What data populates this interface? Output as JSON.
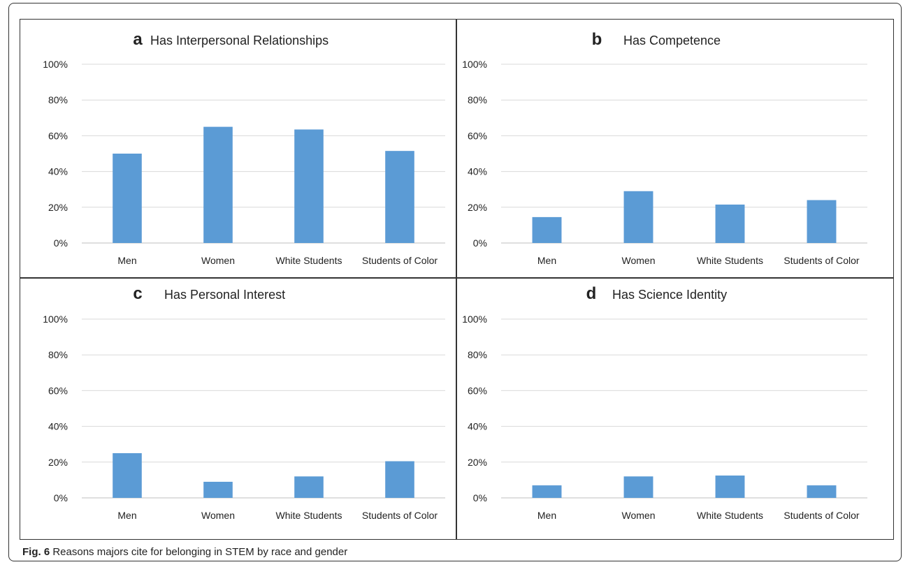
{
  "colors": {
    "bar": "#5b9bd5",
    "grid": "#d9d9d9",
    "axis": "#bfbfbf",
    "text": "#222222"
  },
  "chart_data": [
    {
      "type": "bar",
      "panel_letter": "a",
      "title": "Has Interpersonal Relationships",
      "categories": [
        "Men",
        "Women",
        "White Students",
        "Students of Color"
      ],
      "values": [
        50,
        65,
        63.5,
        51.5
      ],
      "unit": "%",
      "ylim": [
        0,
        100
      ],
      "yticks": [
        "0%",
        "20%",
        "40%",
        "60%",
        "80%",
        "100%"
      ],
      "grid": true,
      "legend": "none"
    },
    {
      "type": "bar",
      "panel_letter": "b",
      "title": "Has Competence",
      "categories": [
        "Men",
        "Women",
        "White Students",
        "Students of Color"
      ],
      "values": [
        14.5,
        29,
        21.5,
        24
      ],
      "unit": "%",
      "ylim": [
        0,
        100
      ],
      "yticks": [
        "0%",
        "20%",
        "40%",
        "60%",
        "80%",
        "100%"
      ],
      "grid": true,
      "legend": "none"
    },
    {
      "type": "bar",
      "panel_letter": "c",
      "title": "Has Personal Interest",
      "categories": [
        "Men",
        "Women",
        "White Students",
        "Students of Color"
      ],
      "values": [
        25,
        9,
        12,
        20.5
      ],
      "unit": "%",
      "ylim": [
        0,
        100
      ],
      "yticks": [
        "0%",
        "20%",
        "40%",
        "60%",
        "80%",
        "100%"
      ],
      "grid": true,
      "legend": "none"
    },
    {
      "type": "bar",
      "panel_letter": "d",
      "title": "Has Science Identity",
      "categories": [
        "Men",
        "Women",
        "White Students",
        "Students of Color"
      ],
      "values": [
        7,
        12,
        12.5,
        7
      ],
      "unit": "%",
      "ylim": [
        0,
        100
      ],
      "yticks": [
        "0%",
        "20%",
        "40%",
        "60%",
        "80%",
        "100%"
      ],
      "grid": true,
      "legend": "none"
    }
  ],
  "caption": {
    "label": "Fig. 6",
    "text": " Reasons majors cite for belonging in STEM by race and gender"
  }
}
